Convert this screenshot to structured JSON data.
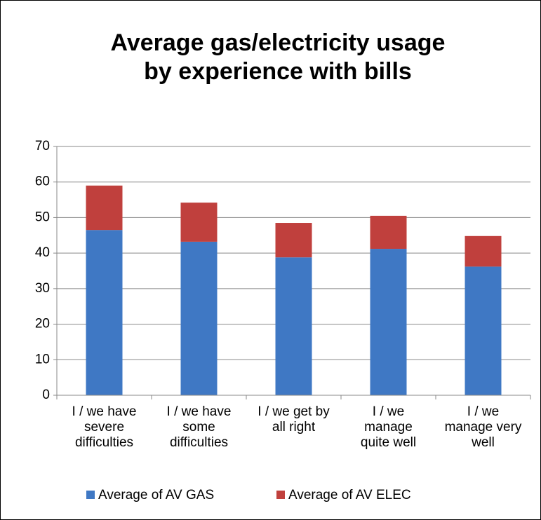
{
  "chart_data": {
    "type": "stacked_bar",
    "title": "Average gas/electricity usage by experience with bills",
    "categories": [
      "I / we have severe difficulties",
      "I / we have some difficulties",
      "I / we get by all right",
      "I / we manage quite well",
      "I / we manage very well"
    ],
    "series": [
      {
        "name": "Average of AV GAS",
        "color": "#3f78c4",
        "values": [
          46.5,
          43.2,
          38.8,
          41.2,
          36.2
        ]
      },
      {
        "name": "Average of AV ELEC",
        "color": "#c0403d",
        "values": [
          12.5,
          11.0,
          9.7,
          9.3,
          8.6
        ]
      }
    ],
    "ylim": [
      0,
      70
    ],
    "yticks": [
      0,
      10,
      20,
      30,
      40,
      50,
      60,
      70
    ],
    "grid": true,
    "legend": "bottom"
  }
}
